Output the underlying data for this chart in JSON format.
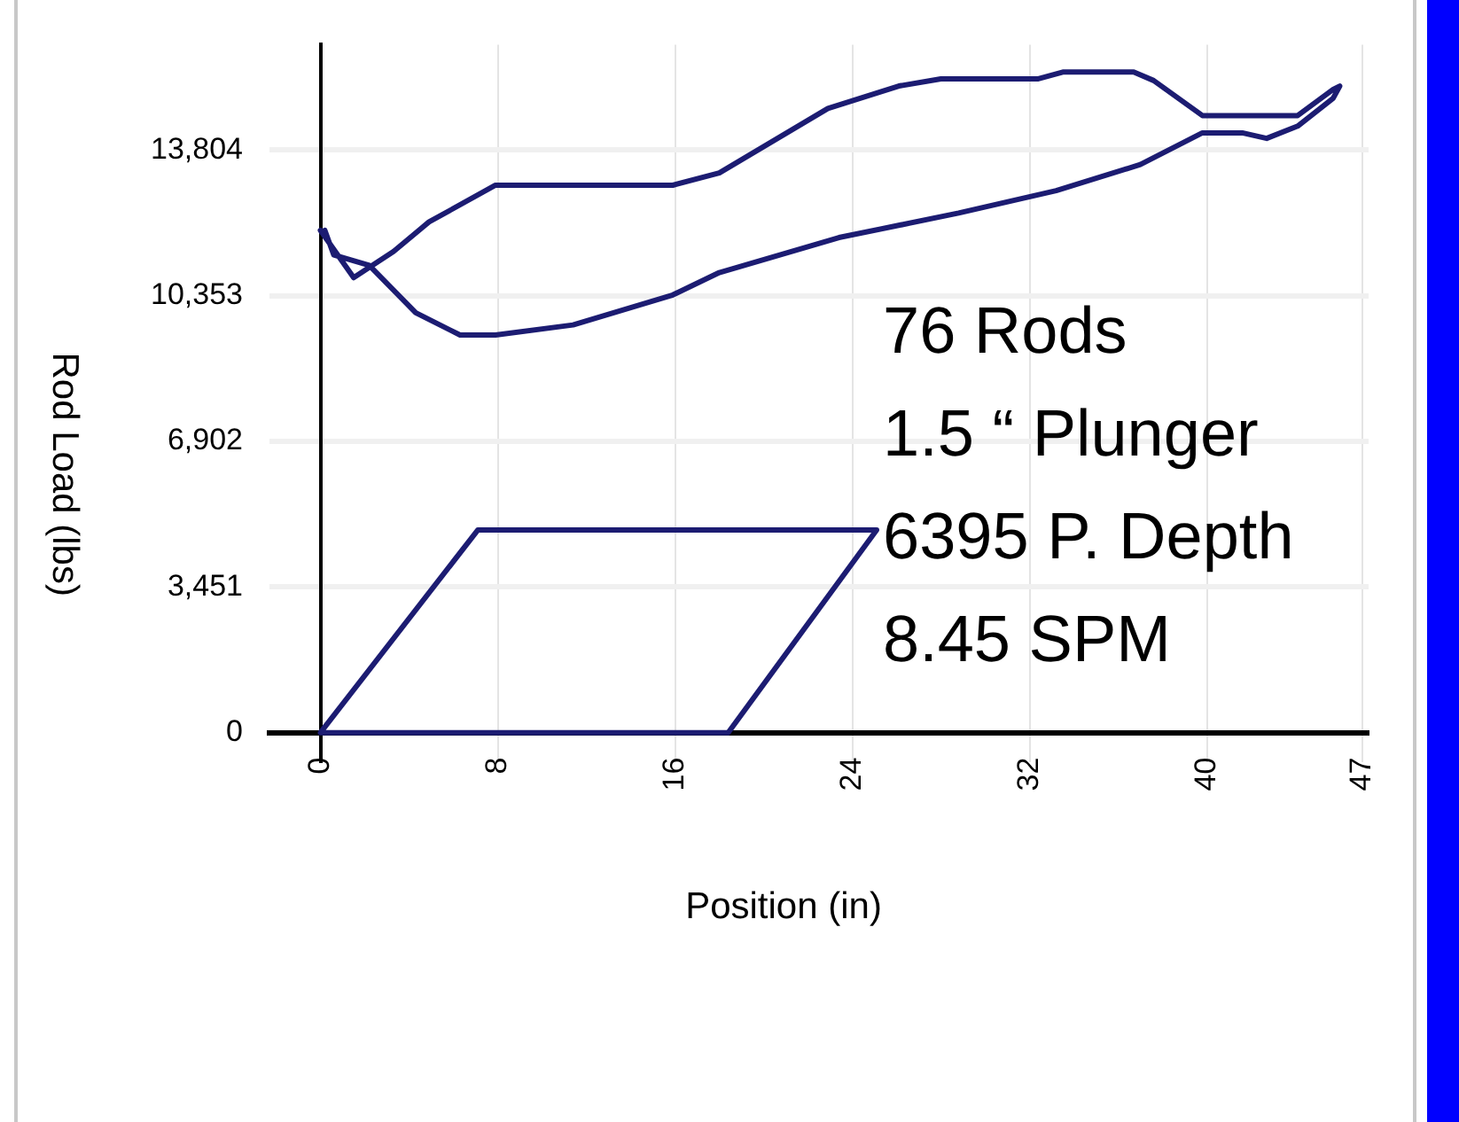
{
  "chart_data": {
    "type": "line",
    "xlabel": "Position (in)",
    "ylabel": "Rod Load (lbs)",
    "xlim": [
      -2.3,
      47.3
    ],
    "ylim": [
      -700,
      16300
    ],
    "xticks": [
      0,
      8,
      16,
      24,
      32,
      40,
      47
    ],
    "yticks": [
      0,
      {
        "value": 3451,
        "label": "3,451"
      },
      {
        "value": 6902,
        "label": "6,902"
      },
      {
        "value": 10353,
        "label": "10,353"
      },
      {
        "value": 13804,
        "label": "13,804"
      }
    ],
    "grid": true,
    "legend": false,
    "marker": "none",
    "line_style": "solid",
    "series": [
      {
        "color": "#1c1c72",
        "x": [
          0,
          1.5,
          3.3,
          4.9,
          7.9,
          15.9,
          18.0,
          22.9,
          26.1,
          28.0,
          32.4,
          33.5,
          36.7,
          37.6,
          39.8,
          44.1,
          45.7,
          46.0,
          45.7,
          44.1,
          42.7,
          41.6,
          39.8,
          37.0,
          33.2,
          28.8,
          23.4,
          18.0,
          15.9,
          11.4,
          7.9,
          6.3,
          4.3,
          2.2,
          0.6,
          0.2
        ],
        "values": [
          11900,
          10780,
          11400,
          12100,
          12970,
          12970,
          13260,
          14790,
          15320,
          15490,
          15490,
          15650,
          15650,
          15450,
          14620,
          14620,
          15240,
          15320,
          15030,
          14370,
          14080,
          14210,
          14210,
          13460,
          12840,
          12310,
          11730,
          10900,
          10370,
          9660,
          9420,
          9420,
          9950,
          11070,
          11320,
          11900
        ]
      },
      {
        "color": "#1c1c72",
        "x": [
          10,
          0,
          7.1,
          25.1,
          18.4,
          9
        ],
        "values": [
          0,
          0,
          4800,
          4800,
          0,
          0
        ]
      }
    ],
    "annotations": [
      "76 Rods",
      "1.5 “ Plunger",
      "6395 P. Depth",
      "8.45 SPM"
    ]
  }
}
